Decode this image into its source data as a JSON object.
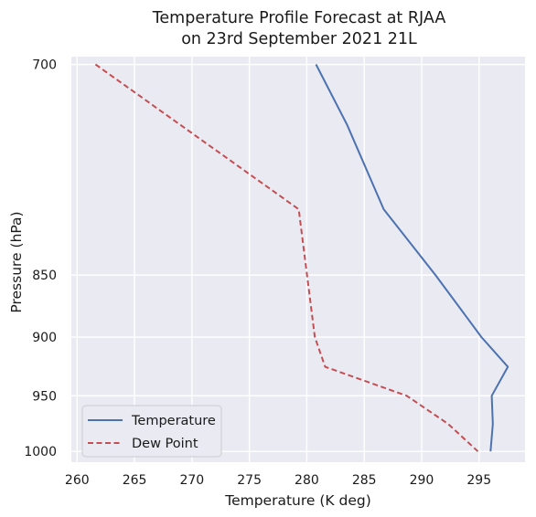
{
  "chart_data": {
    "type": "line",
    "title_line1": "Temperature Profile Forecast at RJAA",
    "title_line2": "on 23rd September 2021 21L",
    "xlabel": "Temperature (K deg)",
    "ylabel": "Pressure (hPa)",
    "xlim": [
      259.5,
      299.0
    ],
    "ylim": [
      1010,
      695
    ],
    "y_scale": "log",
    "grid": true,
    "xticks": [
      260,
      265,
      270,
      275,
      280,
      285,
      290,
      295
    ],
    "yticks": [
      700,
      850,
      900,
      950,
      1000
    ],
    "legend_position": "lower-left",
    "series": [
      {
        "name": "Temperature",
        "color": "#4c72b0",
        "style": "solid",
        "points": [
          {
            "x": 280.8,
            "y": 700
          },
          {
            "x": 283.5,
            "y": 740
          },
          {
            "x": 286.7,
            "y": 800
          },
          {
            "x": 291.2,
            "y": 850
          },
          {
            "x": 295.2,
            "y": 900
          },
          {
            "x": 297.5,
            "y": 925
          },
          {
            "x": 296.1,
            "y": 950
          },
          {
            "x": 296.2,
            "y": 975
          },
          {
            "x": 296.0,
            "y": 1000
          }
        ]
      },
      {
        "name": "Dew Point",
        "color": "#c44e52",
        "style": "dashed",
        "points": [
          {
            "x": 261.6,
            "y": 700
          },
          {
            "x": 279.3,
            "y": 800
          },
          {
            "x": 280.7,
            "y": 900
          },
          {
            "x": 281.6,
            "y": 925
          },
          {
            "x": 288.7,
            "y": 950
          },
          {
            "x": 292.3,
            "y": 975
          },
          {
            "x": 294.9,
            "y": 1000
          }
        ]
      }
    ]
  }
}
